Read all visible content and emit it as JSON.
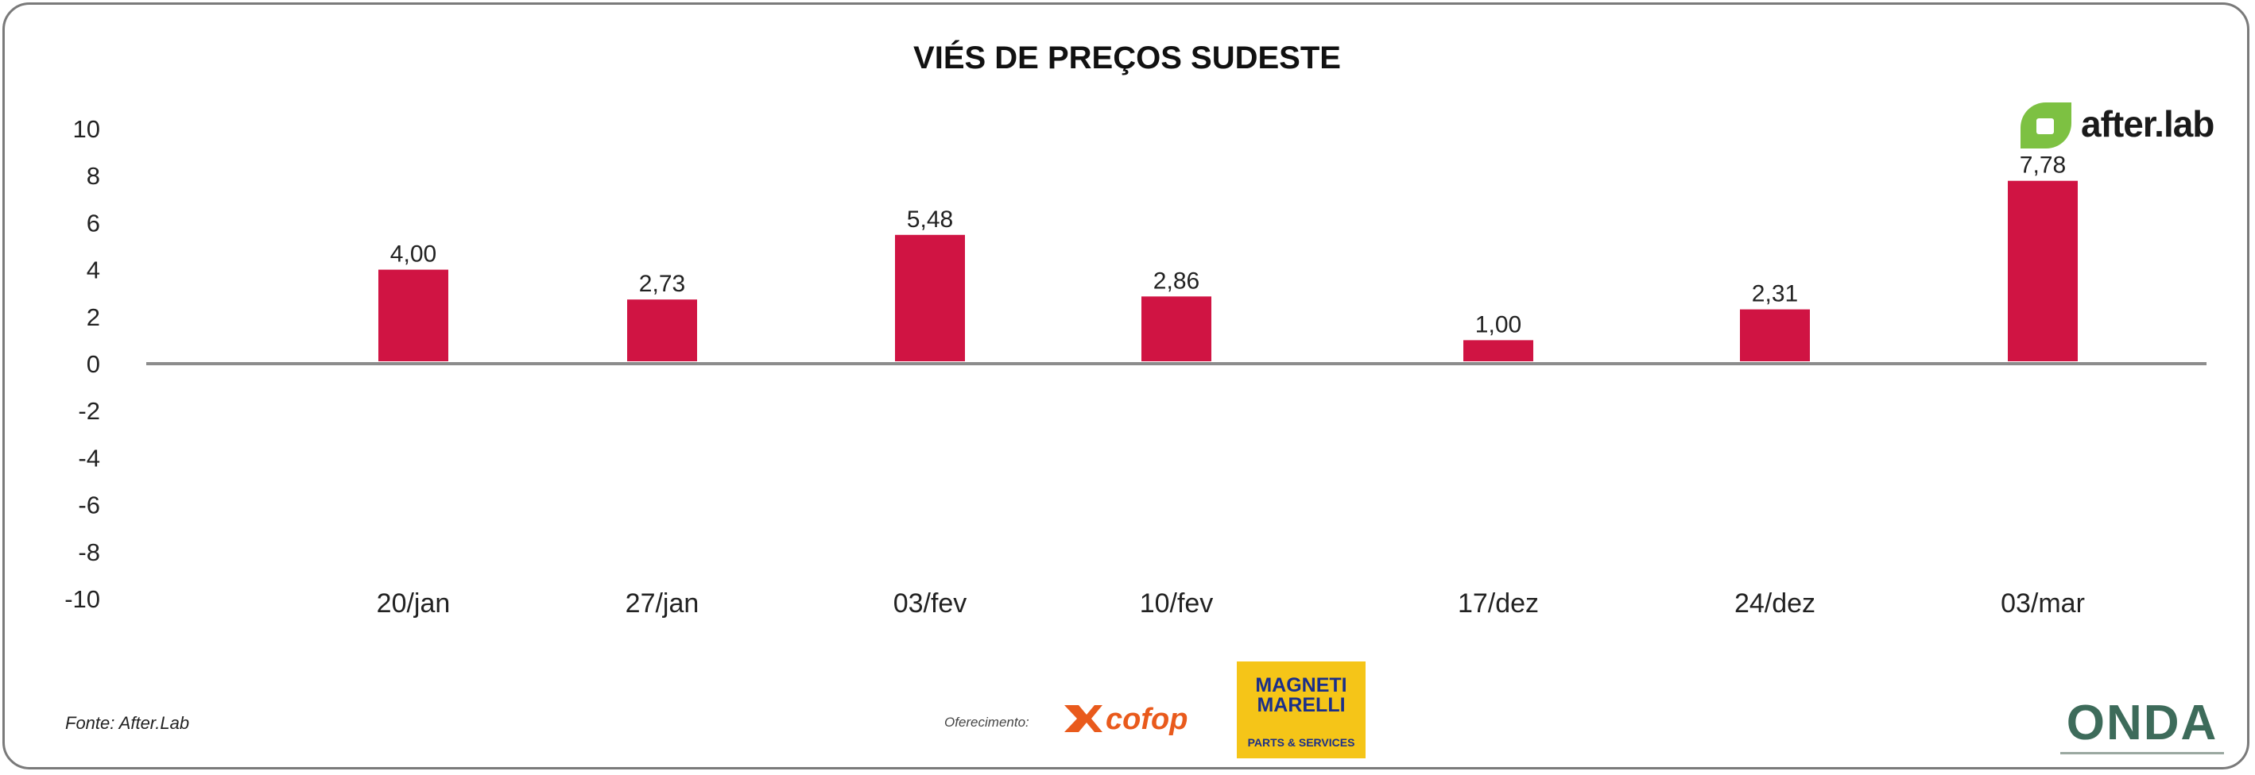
{
  "chart_data": {
    "type": "bar",
    "title": "VIÉS DE PREÇOS SUDESTE",
    "xlabel": "",
    "ylabel": "",
    "categories": [
      "20/jan",
      "27/jan",
      "03/fev",
      "10/fev",
      "17/dez",
      "24/dez",
      "03/mar"
    ],
    "values": [
      4.0,
      2.73,
      5.48,
      2.86,
      1.0,
      2.31,
      7.78
    ],
    "data_labels": [
      "4,00",
      "2,73",
      "5,48",
      "2,86",
      "1,00",
      "2,31",
      "7,78"
    ],
    "ylim": [
      -10,
      10
    ],
    "yticks": [
      10,
      8,
      6,
      4,
      2,
      0,
      -2,
      -4,
      -6,
      -8,
      -10
    ],
    "grid": false,
    "legend": "none",
    "bar_color": "#d01443",
    "axis_color": "#8c8c8c"
  },
  "footer": {
    "source": "Fonte: After.Lab",
    "sponsor_label": "Oferecimento:"
  },
  "logos": {
    "afterlab": "after.lab",
    "afterlab_color": "#7dc142",
    "cofop": "cofop",
    "cofop_color": "#e95a1c",
    "magneti_name": "MAGNETI MARELLI",
    "magneti_sub": "PARTS & SERVICES",
    "magneti_bg": "#f5c518",
    "onda": "ONDA"
  }
}
